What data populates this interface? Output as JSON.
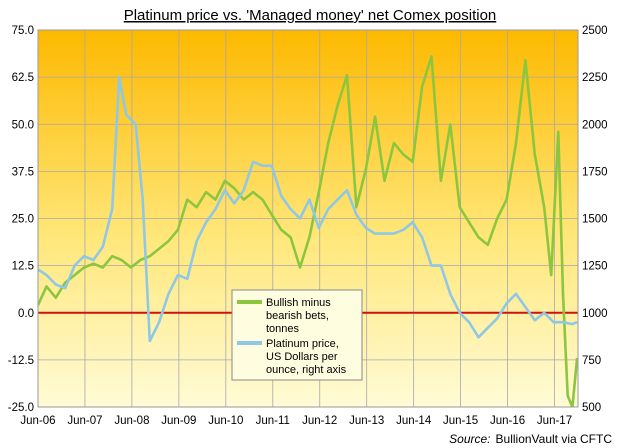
{
  "chart_data": {
    "type": "line",
    "title": "Platinum price vs. 'Managed money' net Comex position",
    "source_label": "Source:",
    "source_text": "BullionVault via CFTC",
    "x_tick_labels": [
      "Jun-06",
      "Jun-07",
      "Jun-08",
      "Jun-09",
      "Jun-10",
      "Jun-11",
      "Jun-12",
      "Jun-13",
      "Jun-14",
      "Jun-15",
      "Jun-16",
      "Jun-17"
    ],
    "x_range": [
      2006.42,
      2017.92
    ],
    "left_axis": {
      "ylim": [
        -25,
        75
      ],
      "ticks": [
        -25,
        -12.5,
        0,
        12.5,
        25,
        37.5,
        50,
        62.5,
        75
      ],
      "tick_labels": [
        "-25.0",
        "-12.5",
        "0.0",
        "12.5",
        "25.0",
        "37.5",
        "50.0",
        "62.5",
        "75.0"
      ]
    },
    "right_axis": {
      "ylim": [
        500,
        2500
      ],
      "ticks": [
        500,
        750,
        1000,
        1250,
        1500,
        1750,
        2000,
        2250,
        2500
      ],
      "tick_labels": [
        "500",
        "750",
        "1000",
        "1250",
        "1500",
        "1750",
        "2000",
        "2250",
        "2500"
      ]
    },
    "grid": true,
    "zero_line_color": "#d01010",
    "legend_position": "bottom-center",
    "series": [
      {
        "name": "Bullish minus bearish bets, tonnes",
        "legend_lines": [
          "Bullish minus",
          "bearish bets,",
          "tonnes"
        ],
        "axis": "left",
        "color": "#8cc63f",
        "x": [
          2006.42,
          2006.6,
          2006.8,
          2007.0,
          2007.2,
          2007.4,
          2007.6,
          2007.8,
          2008.0,
          2008.2,
          2008.4,
          2008.6,
          2008.8,
          2009.0,
          2009.2,
          2009.4,
          2009.6,
          2009.8,
          2010.0,
          2010.2,
          2010.4,
          2010.6,
          2010.8,
          2011.0,
          2011.2,
          2011.4,
          2011.6,
          2011.8,
          2012.0,
          2012.2,
          2012.4,
          2012.6,
          2012.8,
          2013.0,
          2013.2,
          2013.4,
          2013.6,
          2013.8,
          2014.0,
          2014.2,
          2014.4,
          2014.6,
          2014.8,
          2015.0,
          2015.2,
          2015.4,
          2015.6,
          2015.8,
          2016.0,
          2016.2,
          2016.4,
          2016.6,
          2016.8,
          2017.0,
          2017.2,
          2017.35,
          2017.5,
          2017.6,
          2017.7,
          2017.8,
          2017.9
        ],
        "values": [
          2,
          7,
          4,
          8,
          10,
          12,
          13,
          12,
          15,
          14,
          12,
          14,
          15,
          17,
          19,
          22,
          30,
          28,
          32,
          30,
          35,
          33,
          30,
          32,
          30,
          26,
          22,
          20,
          12,
          20,
          32,
          45,
          55,
          63,
          28,
          38,
          52,
          35,
          45,
          42,
          40,
          60,
          68,
          35,
          50,
          28,
          24,
          20,
          18,
          25,
          30,
          45,
          67,
          42,
          28,
          10,
          48,
          5,
          -22,
          -25,
          -12
        ]
      },
      {
        "name": "Platinum price, US Dollars per ounce, right axis",
        "legend_lines": [
          "Platinum price,",
          "US Dollars per",
          "ounce, right axis"
        ],
        "axis": "right",
        "color": "#8ec8e6",
        "x": [
          2006.42,
          2006.6,
          2006.8,
          2007.0,
          2007.2,
          2007.4,
          2007.6,
          2007.8,
          2008.0,
          2008.15,
          2008.3,
          2008.5,
          2008.65,
          2008.8,
          2009.0,
          2009.2,
          2009.4,
          2009.6,
          2009.8,
          2010.0,
          2010.2,
          2010.4,
          2010.6,
          2010.8,
          2011.0,
          2011.2,
          2011.4,
          2011.6,
          2011.8,
          2012.0,
          2012.2,
          2012.4,
          2012.6,
          2012.8,
          2013.0,
          2013.2,
          2013.4,
          2013.6,
          2013.8,
          2014.0,
          2014.2,
          2014.4,
          2014.6,
          2014.8,
          2015.0,
          2015.2,
          2015.4,
          2015.6,
          2015.8,
          2016.0,
          2016.2,
          2016.4,
          2016.6,
          2016.8,
          2017.0,
          2017.2,
          2017.4,
          2017.6,
          2017.8,
          2017.9
        ],
        "values": [
          1230,
          1200,
          1150,
          1130,
          1250,
          1300,
          1280,
          1350,
          1550,
          2250,
          2050,
          2000,
          1600,
          850,
          950,
          1100,
          1200,
          1180,
          1380,
          1480,
          1550,
          1650,
          1580,
          1650,
          1800,
          1780,
          1780,
          1620,
          1550,
          1500,
          1600,
          1450,
          1550,
          1600,
          1650,
          1520,
          1450,
          1420,
          1420,
          1420,
          1440,
          1480,
          1400,
          1250,
          1250,
          1100,
          1000,
          950,
          870,
          920,
          970,
          1050,
          1100,
          1030,
          960,
          1000,
          950,
          950,
          940,
          950
        ]
      }
    ]
  }
}
